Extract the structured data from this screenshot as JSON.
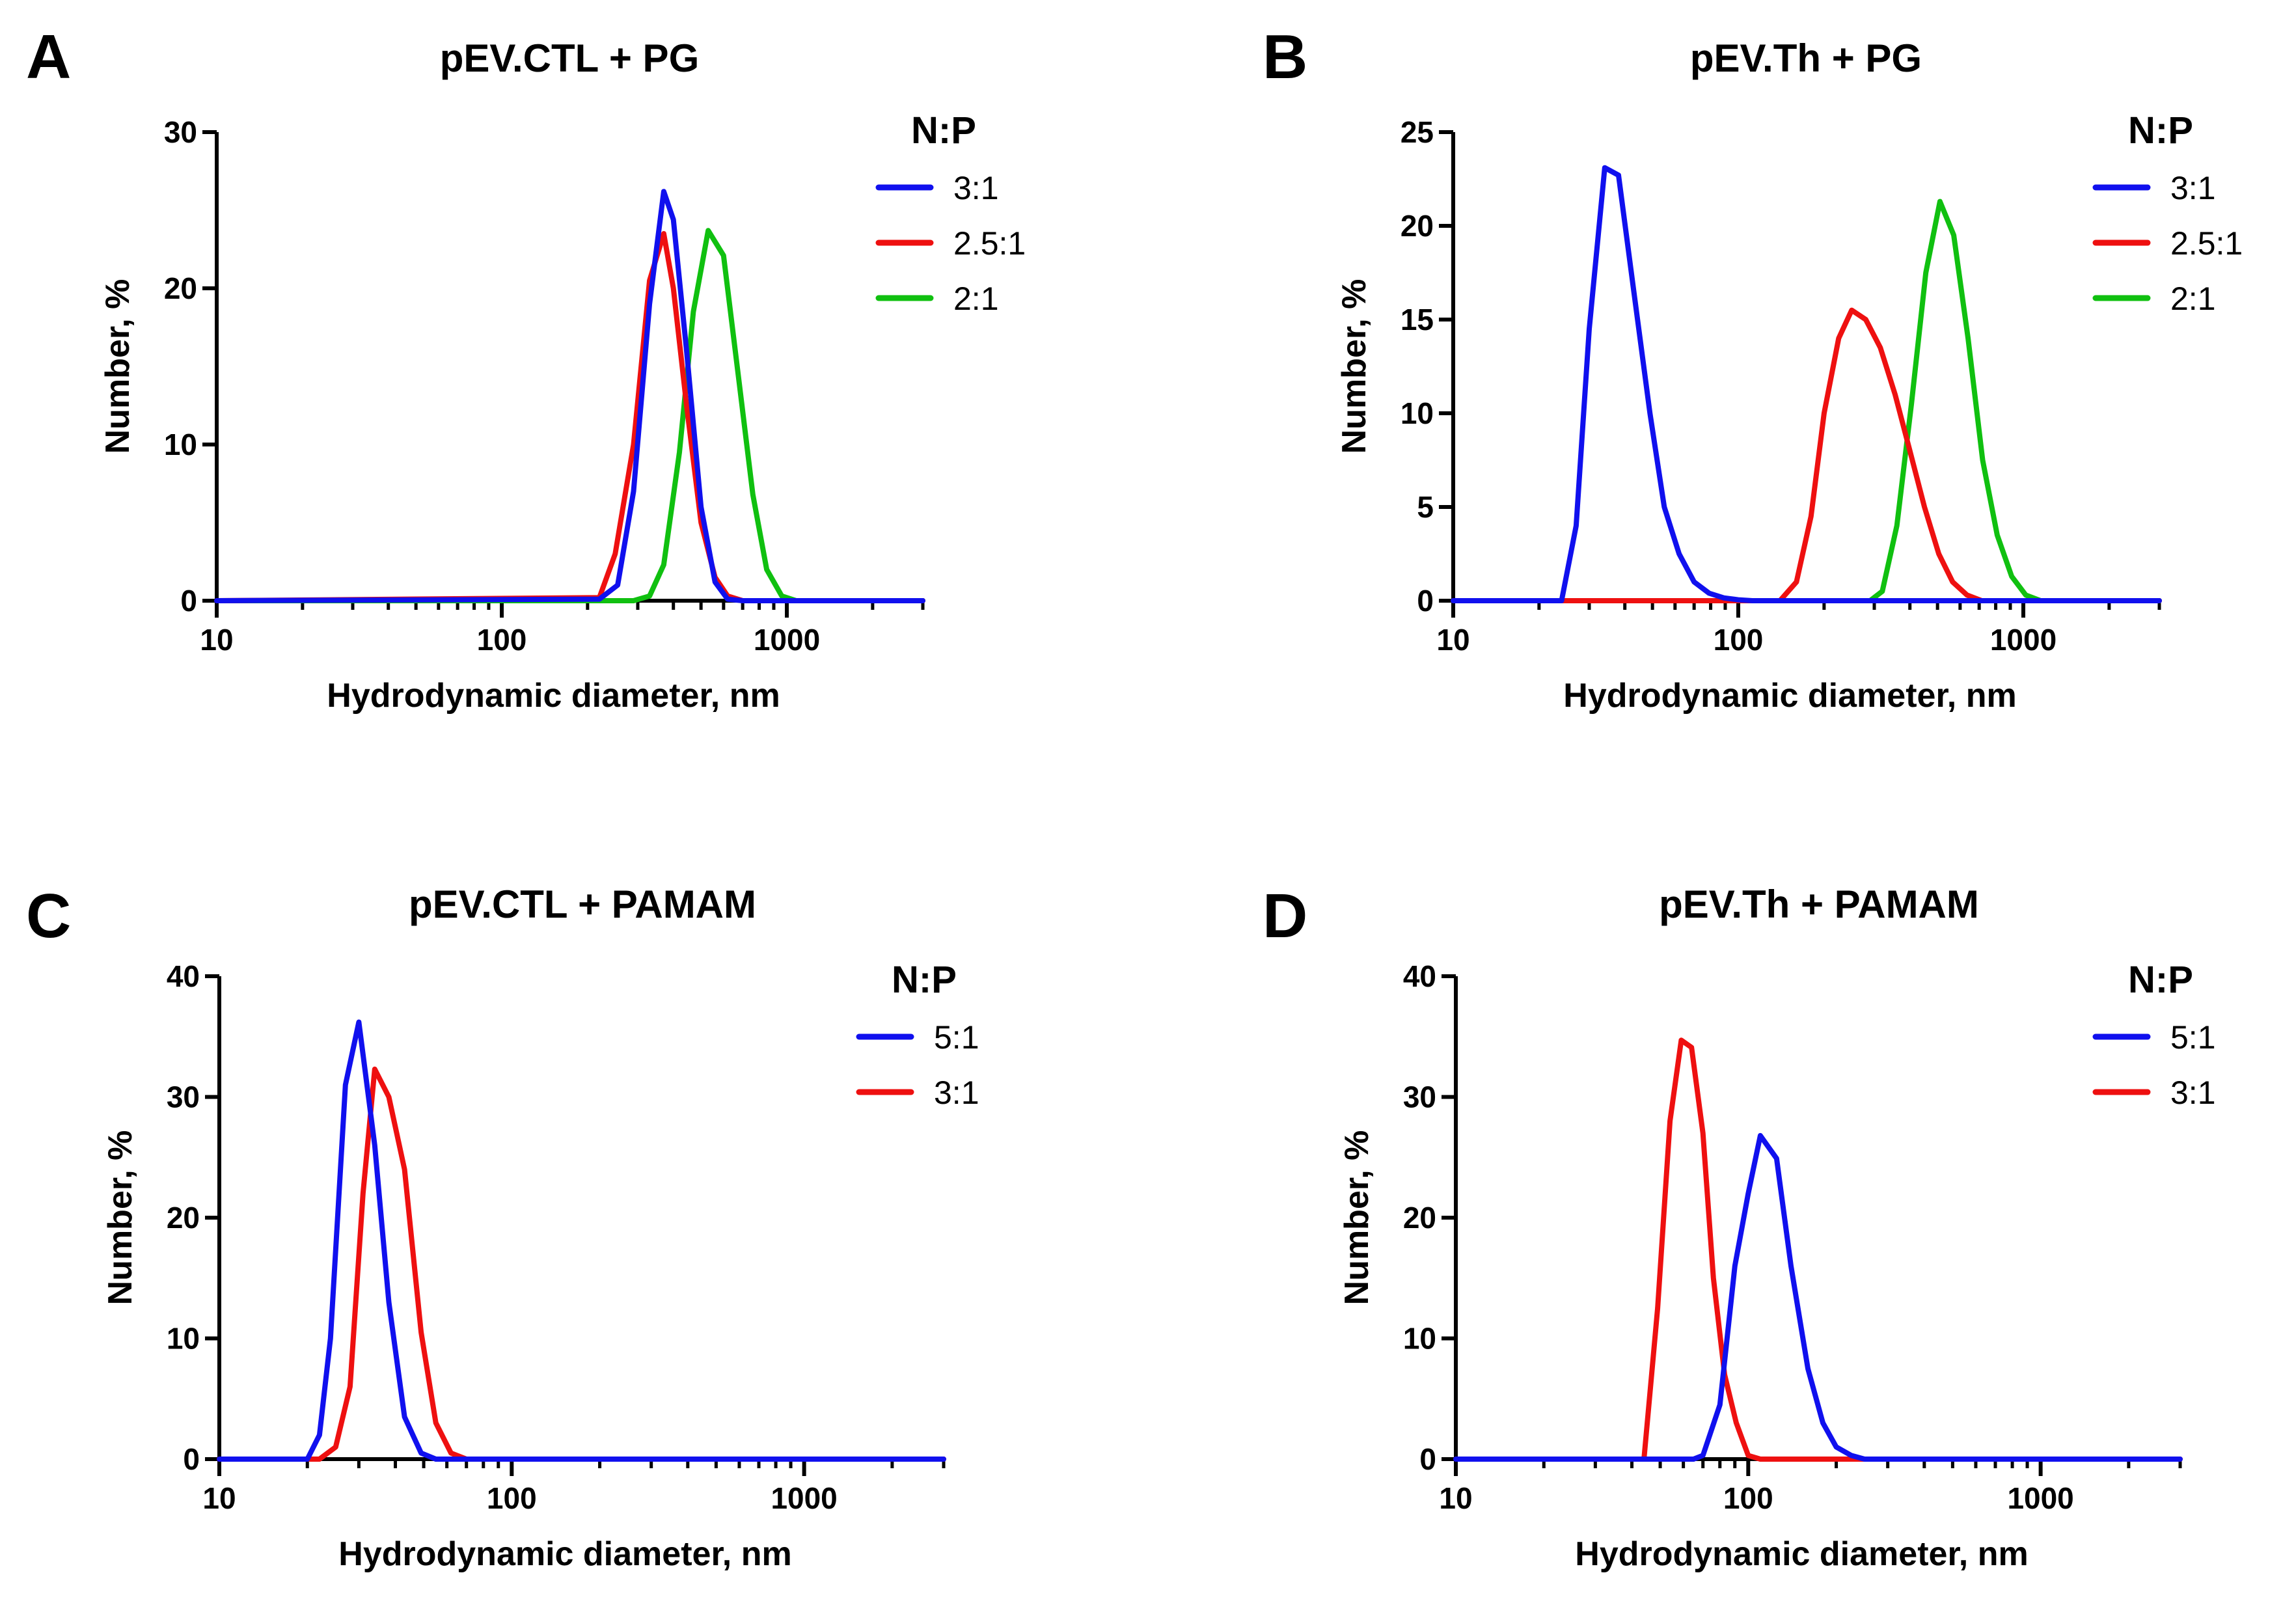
{
  "chart_data": [
    {
      "letter": "A",
      "type": "line",
      "title": "pEV.CTL + PG",
      "xlabel": "Hydrodynamic diameter, nm",
      "ylabel": "Number, %",
      "xscale": "log",
      "xlim": [
        10,
        3000
      ],
      "ylim": [
        0,
        30
      ],
      "yticks": [
        0,
        10,
        20,
        30
      ],
      "xticks": [
        10,
        100,
        1000
      ],
      "xtick_labels": [
        "10",
        "100",
        "1000"
      ],
      "legend_title": "N:P",
      "legend_position": "top-right",
      "series": [
        {
          "name": "3:1",
          "color": "#1010ee",
          "x": [
            10,
            220,
            255,
            290,
            330,
            370,
            400,
            445,
            500,
            560,
            620,
            700,
            800,
            3000
          ],
          "y": [
            0,
            0.1,
            1.0,
            7,
            19,
            26.2,
            24.4,
            16,
            6,
            1.2,
            0.1,
            0,
            0,
            0
          ]
        },
        {
          "name": "2.5:1",
          "color": "#ee1010",
          "x": [
            10,
            220,
            250,
            290,
            330,
            370,
            400,
            445,
            500,
            560,
            620,
            700,
            800,
            3000
          ],
          "y": [
            0,
            0.2,
            3.0,
            10.0,
            20.5,
            23.5,
            20.0,
            12.5,
            5.0,
            1.5,
            0.3,
            0,
            0,
            0
          ]
        },
        {
          "name": "2:1",
          "color": "#10c010",
          "x": [
            10,
            290,
            330,
            370,
            420,
            470,
            530,
            600,
            680,
            760,
            850,
            960,
            1080,
            1200,
            3000
          ],
          "y": [
            0,
            0,
            0.3,
            2.3,
            9.5,
            18.5,
            23.7,
            22.1,
            14.0,
            6.8,
            2.0,
            0.3,
            0,
            0,
            0
          ]
        }
      ]
    },
    {
      "letter": "B",
      "type": "line",
      "title": "pEV.Th + PG",
      "xlabel": "Hydrodynamic diameter, nm",
      "ylabel": "Number, %",
      "xscale": "log",
      "xlim": [
        10,
        3000
      ],
      "ylim": [
        0,
        25
      ],
      "yticks": [
        0,
        5,
        10,
        15,
        20,
        25
      ],
      "xticks": [
        10,
        100,
        1000
      ],
      "xtick_labels": [
        "10",
        "100",
        "1000"
      ],
      "legend_title": "N:P",
      "legend_position": "top-right",
      "series": [
        {
          "name": "3:1",
          "color": "#1010ee",
          "x": [
            10,
            24,
            27,
            30,
            34,
            38,
            43,
            49,
            55,
            62,
            70,
            79,
            89,
            100,
            112,
            126,
            142,
            160,
            3000
          ],
          "y": [
            0,
            0,
            4.0,
            14.5,
            23.1,
            22.7,
            16.5,
            10.0,
            5.0,
            2.5,
            1.0,
            0.4,
            0.15,
            0.05,
            0,
            0,
            0,
            0,
            0
          ]
        },
        {
          "name": "2.5:1",
          "color": "#ee1010",
          "x": [
            10,
            140,
            160,
            180,
            200,
            225,
            250,
            280,
            315,
            355,
            400,
            450,
            505,
            565,
            635,
            715,
            800,
            900,
            1000,
            3000
          ],
          "y": [
            0,
            0,
            1.0,
            4.5,
            10.0,
            14.0,
            15.5,
            15.0,
            13.5,
            11.0,
            8.0,
            5.0,
            2.5,
            1.0,
            0.3,
            0,
            0,
            0,
            0,
            0
          ]
        },
        {
          "name": "2:1",
          "color": "#10c010",
          "x": [
            10,
            290,
            320,
            360,
            405,
            455,
            510,
            570,
            640,
            720,
            810,
            910,
            1020,
            1150,
            1290,
            1450,
            1600,
            3000
          ],
          "y": [
            0,
            0,
            0.5,
            4.0,
            10.5,
            17.5,
            21.3,
            19.5,
            14.0,
            7.5,
            3.5,
            1.3,
            0.3,
            0,
            0,
            0,
            0,
            0
          ]
        }
      ]
    },
    {
      "letter": "C",
      "type": "line",
      "title": "pEV.CTL + PAMAM",
      "xlabel": "Hydrodynamic diameter, nm",
      "ylabel": "Number, %",
      "xscale": "log",
      "xlim": [
        10,
        3000
      ],
      "ylim": [
        0,
        40
      ],
      "yticks": [
        0,
        10,
        20,
        30,
        40
      ],
      "xticks": [
        10,
        100,
        1000
      ],
      "xtick_labels": [
        "10",
        "100",
        "1000"
      ],
      "legend_title": "N:P",
      "legend_position": "top-right",
      "series": [
        {
          "name": "5:1",
          "color": "#1010ee",
          "x": [
            10,
            20,
            22,
            24,
            27,
            30,
            34,
            38,
            43,
            49,
            55,
            62,
            3000
          ],
          "y": [
            0,
            0,
            2.0,
            10.0,
            31.0,
            36.2,
            26.0,
            13.0,
            3.5,
            0.5,
            0,
            0,
            0
          ]
        },
        {
          "name": "3:1",
          "color": "#ee1010",
          "x": [
            10,
            22,
            25,
            28,
            31,
            34,
            38,
            43,
            49,
            55,
            62,
            70,
            80,
            3000
          ],
          "y": [
            0,
            0,
            1.0,
            6.0,
            22.0,
            32.3,
            30.0,
            24.0,
            10.5,
            3.0,
            0.5,
            0,
            0,
            0
          ]
        }
      ]
    },
    {
      "letter": "D",
      "type": "line",
      "title": "pEV.Th + PAMAM",
      "xlabel": "Hydrodynamic diameter, nm",
      "ylabel": "Number, %",
      "xscale": "log",
      "xlim": [
        10,
        3000
      ],
      "ylim": [
        0,
        40
      ],
      "yticks": [
        0,
        10,
        20,
        30,
        40
      ],
      "xticks": [
        10,
        100,
        1000
      ],
      "xtick_labels": [
        "10",
        "100",
        "1000"
      ],
      "legend_title": "N:P",
      "legend_position": "top-right",
      "series": [
        {
          "name": "5:1",
          "color": "#1010ee",
          "x": [
            10,
            65,
            70,
            80,
            90,
            100,
            110,
            125,
            140,
            160,
            180,
            200,
            225,
            250,
            3000
          ],
          "y": [
            0,
            0,
            0.3,
            4.5,
            16.0,
            22.0,
            26.8,
            24.9,
            16.0,
            7.5,
            3.0,
            1.0,
            0.3,
            0,
            0
          ]
        },
        {
          "name": "3:1",
          "color": "#ee1010",
          "x": [
            10,
            44,
            49,
            54,
            59,
            64,
            70,
            76,
            83,
            91,
            100,
            110,
            3000
          ],
          "y": [
            0,
            0,
            12.5,
            28.0,
            34.7,
            34.1,
            27.0,
            15.0,
            7.0,
            3.0,
            0.3,
            0,
            0
          ]
        }
      ]
    }
  ]
}
